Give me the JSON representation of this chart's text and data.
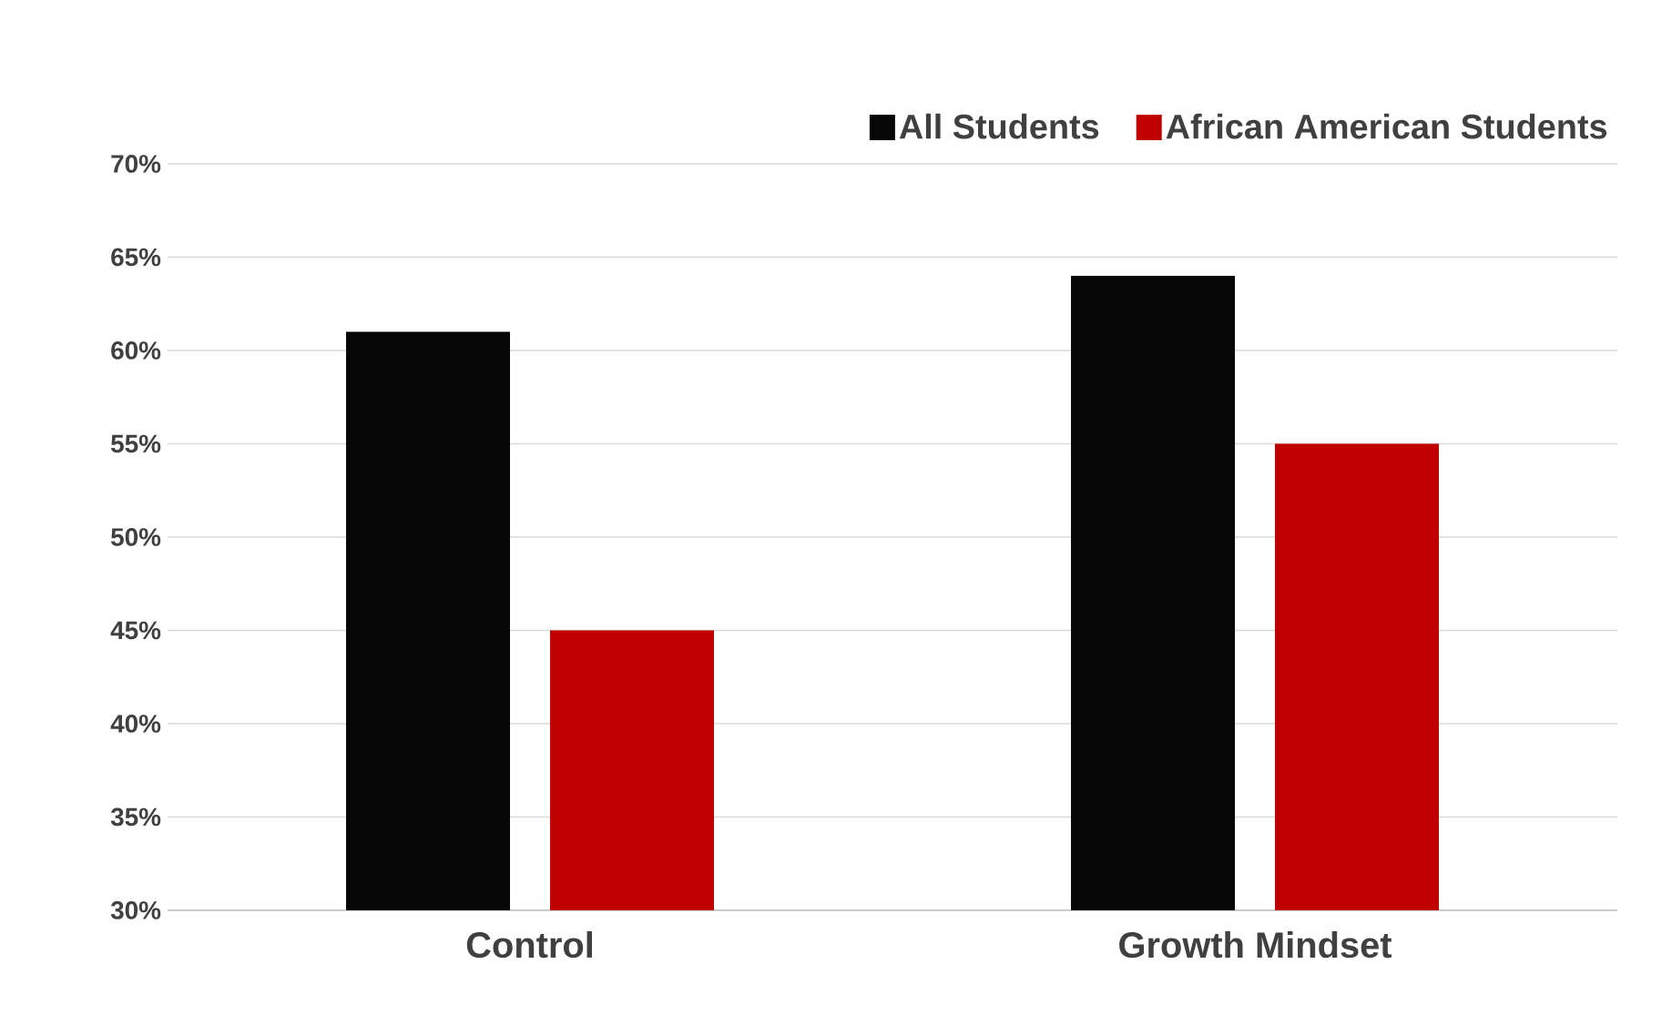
{
  "chart_data": {
    "type": "bar",
    "categories": [
      "Control",
      "Growth Mindset"
    ],
    "series": [
      {
        "name": "All Students",
        "color": "#060606",
        "values": [
          61,
          64
        ]
      },
      {
        "name": "African American Students",
        "color": "#c00000",
        "values": [
          45,
          55
        ]
      }
    ],
    "ylim": [
      30,
      70
    ],
    "yticks": [
      {
        "value": 30,
        "label": "30%"
      },
      {
        "value": 35,
        "label": "35%"
      },
      {
        "value": 40,
        "label": "40%"
      },
      {
        "value": 45,
        "label": "45%"
      },
      {
        "value": 50,
        "label": "50%"
      },
      {
        "value": 55,
        "label": "55%"
      },
      {
        "value": 60,
        "label": "60%"
      },
      {
        "value": 65,
        "label": "65%"
      },
      {
        "value": 70,
        "label": "70%"
      }
    ],
    "grid": "y",
    "legend": "top right"
  }
}
